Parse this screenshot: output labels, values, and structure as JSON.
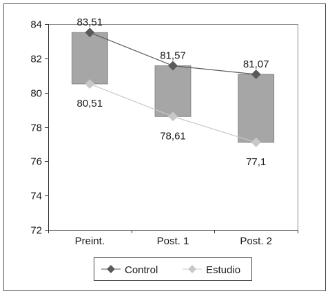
{
  "chart_data": {
    "type": "line",
    "categories": [
      "Preint.",
      "Post. 1",
      "Post. 2"
    ],
    "ylim": [
      72,
      84
    ],
    "yticks": [
      72,
      74,
      76,
      78,
      80,
      82,
      84
    ],
    "series": [
      {
        "name": "Control",
        "values": [
          83.51,
          81.57,
          81.07
        ],
        "labels": [
          "83,51",
          "81,57",
          "81,07"
        ],
        "color": "#5a5a5a",
        "marker": "diamond"
      },
      {
        "name": "Estudio",
        "values": [
          80.51,
          78.61,
          77.1
        ],
        "labels": [
          "80,51",
          "78,61",
          "77,1"
        ],
        "color": "#c8c8c8",
        "marker": "diamond"
      }
    ],
    "range_bars": {
      "color": "#a6a6a6"
    },
    "legend_position": "bottom",
    "grid": false,
    "title": "",
    "xlabel": "",
    "ylabel": ""
  }
}
